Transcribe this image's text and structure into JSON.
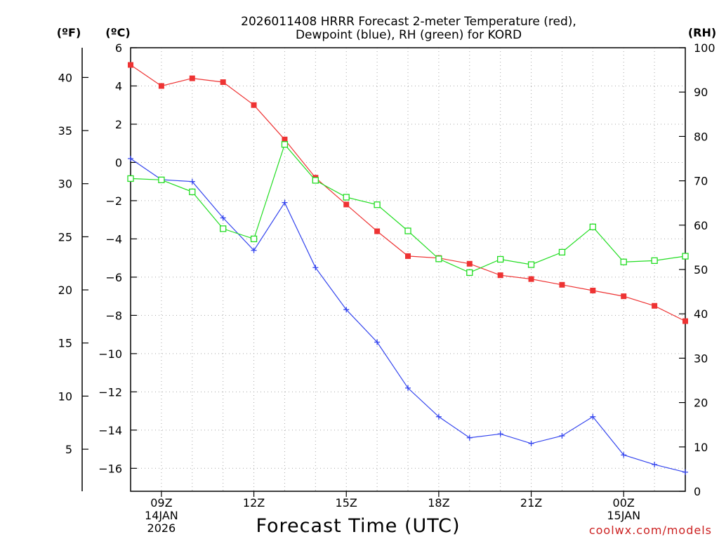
{
  "chart_data": {
    "type": "line",
    "title_line1": "2026011408 HRRR Forecast 2-meter Temperature (red),",
    "title_line2": "Dewpoint (blue), RH (green) for KORD",
    "xlabel": "Forecast Time (UTC)",
    "unit_f": "(ºF)",
    "unit_c": "(ºC)",
    "unit_rh": "(RH)",
    "watermark": "coolwx.com/models",
    "hours": [
      8,
      9,
      10,
      11,
      12,
      13,
      14,
      15,
      16,
      17,
      18,
      19,
      20,
      21,
      22,
      23,
      24,
      25,
      26
    ],
    "x_range": [
      8,
      26
    ],
    "x_ticks": [
      {
        "x": 9,
        "lines": [
          "09Z",
          "14JAN",
          "2026"
        ]
      },
      {
        "x": 12,
        "lines": [
          "12Z"
        ]
      },
      {
        "x": 15,
        "lines": [
          "15Z"
        ]
      },
      {
        "x": 18,
        "lines": [
          "18Z"
        ]
      },
      {
        "x": 21,
        "lines": [
          "21Z"
        ]
      },
      {
        "x": 24,
        "lines": [
          "00Z",
          "15JAN"
        ]
      }
    ],
    "ylim_c": [
      -17.2,
      6
    ],
    "yticks_c": [
      "6",
      "4",
      "2",
      "0",
      "−2",
      "−4",
      "−6",
      "−8",
      "−10",
      "−12",
      "−14",
      "−16"
    ],
    "yticks_c_values": [
      6,
      4,
      2,
      0,
      -2,
      -4,
      -6,
      -8,
      -10,
      -12,
      -14,
      -16
    ],
    "yticks_f": [
      "40",
      "35",
      "30",
      "25",
      "20",
      "15",
      "10",
      "5"
    ],
    "yticks_f_values": [
      40,
      35,
      30,
      25,
      20,
      15,
      10,
      5
    ],
    "ylim_rh": [
      0,
      100
    ],
    "yticks_rh": [
      "100",
      "90",
      "80",
      "70",
      "60",
      "50",
      "40",
      "30",
      "20",
      "10",
      "0"
    ],
    "yticks_rh_values": [
      100,
      90,
      80,
      70,
      60,
      50,
      40,
      30,
      20,
      10,
      0
    ],
    "grid": true,
    "series": [
      {
        "name": "2-meter Temperature",
        "unit": "C",
        "color": "#ee3333",
        "marker": "filled-square",
        "values": [
          5.1,
          4.0,
          4.4,
          4.2,
          3.0,
          1.2,
          -0.8,
          -2.2,
          -3.6,
          -4.9,
          -5.0,
          -5.3,
          -5.9,
          -6.1,
          -6.4,
          -6.7,
          -7.0,
          -7.5,
          -8.3
        ]
      },
      {
        "name": "Dewpoint",
        "unit": "C",
        "color": "#3344ee",
        "marker": "plus",
        "values": [
          0.2,
          -0.9,
          -1.0,
          -2.9,
          -4.6,
          -2.1,
          -5.5,
          -7.7,
          -9.4,
          -11.8,
          -13.3,
          -14.4,
          -14.2,
          -14.7,
          -14.3,
          -13.3,
          -15.3,
          -15.8,
          -16.2
        ]
      },
      {
        "name": "RH",
        "unit": "%",
        "color": "#22dd22",
        "marker": "open-square",
        "values": [
          70.5,
          70.2,
          67.5,
          59.2,
          56.9,
          78.2,
          70.1,
          66.3,
          64.6,
          58.7,
          52.4,
          49.3,
          52.3,
          51.1,
          53.9,
          59.6,
          51.7,
          52.0,
          53.0
        ]
      }
    ]
  }
}
